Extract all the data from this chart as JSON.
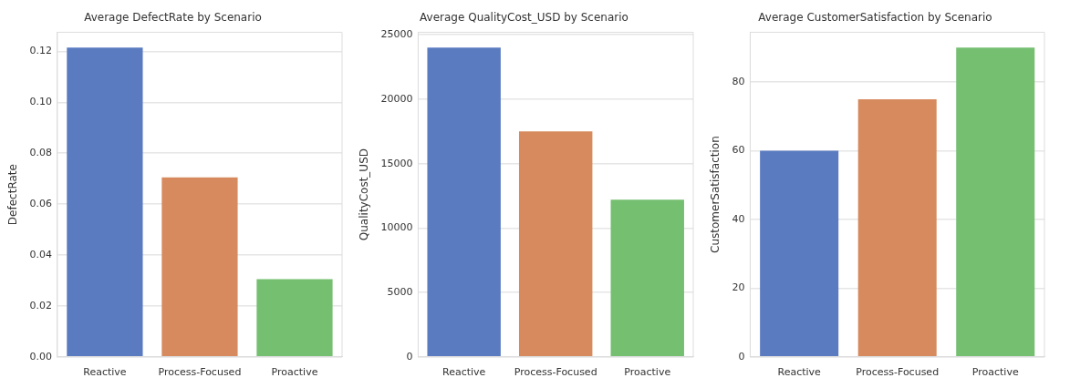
{
  "chart_data": [
    {
      "type": "bar",
      "title": "Average DefectRate by Scenario",
      "ylabel": "DefectRate",
      "categories": [
        "Reactive",
        "Process-Focused",
        "Proactive"
      ],
      "values": [
        0.1215,
        0.0705,
        0.0305
      ],
      "colors": [
        "#5a7bc0",
        "#d68a5e",
        "#74bf70"
      ],
      "ylim": [
        0,
        0.1275
      ],
      "yticks": [
        {
          "value": 0,
          "label": "0.00"
        },
        {
          "value": 0.02,
          "label": "0.02"
        },
        {
          "value": 0.04,
          "label": "0.04"
        },
        {
          "value": 0.06,
          "label": "0.06"
        },
        {
          "value": 0.08,
          "label": "0.08"
        },
        {
          "value": 0.1,
          "label": "0.10"
        },
        {
          "value": 0.12,
          "label": "0.12"
        }
      ],
      "grid": "y"
    },
    {
      "type": "bar",
      "title": "Average QualityCost_USD by Scenario",
      "ylabel": "QualityCost_USD",
      "categories": [
        "Reactive",
        "Process-Focused",
        "Proactive"
      ],
      "values": [
        24000,
        17500,
        12200
      ],
      "colors": [
        "#5a7bc0",
        "#d68a5e",
        "#74bf70"
      ],
      "ylim": [
        0,
        25200
      ],
      "yticks": [
        0,
        5000,
        10000,
        15000,
        20000,
        25000
      ],
      "grid": "y"
    },
    {
      "type": "bar",
      "title": "Average CustomerSatisfaction by Scenario",
      "ylabel": "CustomerSatisfaction",
      "categories": [
        "Reactive",
        "Process-Focused",
        "Proactive"
      ],
      "values": [
        60,
        75,
        90
      ],
      "colors": [
        "#5a7bc0",
        "#d68a5e",
        "#74bf70"
      ],
      "ylim": [
        0,
        94.5
      ],
      "yticks": [
        0,
        20,
        40,
        60,
        80
      ],
      "grid": "y"
    }
  ]
}
